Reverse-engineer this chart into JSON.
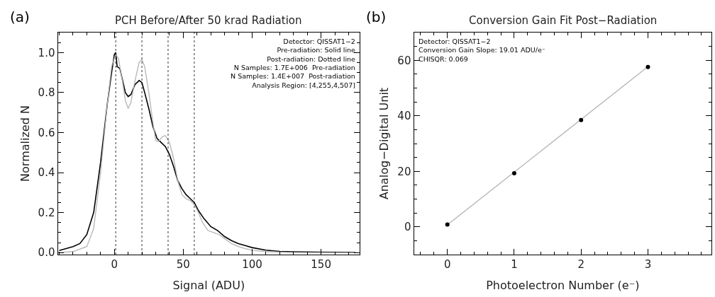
{
  "chart_data": [
    {
      "type": "line",
      "title": "PCH Before/After 50 krad Radiation",
      "xlabel": "Signal (ADU)",
      "ylabel": "Normalized N",
      "annotations": [
        "(a)",
        "Detector: QISSAT1−2",
        "Pre-radiation: Solid line",
        "Post-radiation: Dotted line",
        "N Samples: 1.7E+006  Pre-radiation",
        "N Samples: 1.4E+007  Post-radiation",
        "Analysis Region: [4,255,4,507]"
      ],
      "series": [
        {
          "color": "#000000",
          "x": [
            -40,
            -30,
            -25,
            -20,
            -15,
            -10,
            -5,
            -2,
            0,
            1,
            2,
            4,
            6,
            8,
            10,
            12,
            15,
            18,
            20,
            22,
            25,
            28,
            31,
            34,
            37,
            40,
            43,
            46,
            49,
            52,
            55,
            58,
            61,
            65,
            70,
            75,
            80,
            85,
            90,
            95,
            100,
            110,
            120,
            130,
            150,
            175
          ],
          "values": [
            0.01,
            0.03,
            0.045,
            0.09,
            0.2,
            0.45,
            0.75,
            0.9,
            0.99,
            1.0,
            0.93,
            0.92,
            0.86,
            0.8,
            0.78,
            0.79,
            0.84,
            0.86,
            0.85,
            0.8,
            0.72,
            0.63,
            0.57,
            0.55,
            0.53,
            0.49,
            0.43,
            0.36,
            0.32,
            0.29,
            0.27,
            0.25,
            0.21,
            0.17,
            0.13,
            0.11,
            0.08,
            0.06,
            0.045,
            0.035,
            0.025,
            0.012,
            0.006,
            0.004,
            0.002,
            0.001
          ]
        },
        {
          "color": "#b4b4b4",
          "x": [
            -40,
            -30,
            -20,
            -15,
            -10,
            -5,
            -2,
            1,
            3,
            6,
            8,
            10,
            12,
            15,
            18,
            20,
            22,
            25,
            28,
            30,
            32,
            35,
            37,
            40,
            43,
            46,
            49,
            52,
            55,
            58,
            61,
            64,
            68,
            72,
            76,
            80,
            85,
            90,
            95,
            100,
            110,
            125,
            150,
            175
          ],
          "values": [
            0.0,
            0.005,
            0.03,
            0.12,
            0.4,
            0.75,
            0.93,
            0.99,
            0.97,
            0.85,
            0.76,
            0.72,
            0.75,
            0.86,
            0.95,
            0.965,
            0.93,
            0.8,
            0.65,
            0.56,
            0.555,
            0.58,
            0.585,
            0.55,
            0.47,
            0.36,
            0.29,
            0.27,
            0.26,
            0.24,
            0.2,
            0.15,
            0.11,
            0.1,
            0.09,
            0.07,
            0.045,
            0.03,
            0.02,
            0.012,
            0.005,
            0.001,
            0.0,
            0.0
          ]
        }
      ],
      "ref_lines": [
        {
          "axis": "x",
          "value": 1,
          "line_style": "dotted",
          "color": "#000000"
        },
        {
          "axis": "x",
          "value": 20,
          "line_style": "dotted",
          "color": "#000000"
        },
        {
          "axis": "x",
          "value": 39,
          "line_style": "dotted",
          "color": "#000000"
        },
        {
          "axis": "x",
          "value": 58,
          "line_style": "dotted",
          "color": "#000000"
        }
      ],
      "xlim": [
        -41,
        178
      ],
      "xticks": [
        0,
        50,
        100,
        150
      ],
      "ylim": [
        -0.01,
        1.1
      ],
      "yticks": [
        {
          "value": 0,
          "label": "0.0"
        },
        {
          "value": 0.2,
          "label": "0.2"
        },
        {
          "value": 0.4,
          "label": "0.4"
        },
        {
          "value": 0.6,
          "label": "0.6"
        },
        {
          "value": 0.8,
          "label": "0.8"
        },
        {
          "value": 1,
          "label": "1.0"
        }
      ],
      "grid": false,
      "legend": false,
      "marker": "none",
      "line_style": "solid"
    },
    {
      "type": "scatter",
      "title": "Conversion Gain Fit Post−Radiation",
      "xlabel": "Photoelectron Number (e⁻)",
      "ylabel": "Analog−Digital Unit",
      "annotations": [
        "(b)",
        "Detector: QISSAT1−2",
        "Conversion Gain Slope: 19.01 ADU/e⁻",
        "CHISQR: 0.069"
      ],
      "series": [
        {
          "type": "line",
          "color": "#b4b4b4",
          "x": [
            0,
            3
          ],
          "values": [
            0.7,
            57.7
          ],
          "marker": "none"
        },
        {
          "type": "scatter",
          "color": "#000000",
          "x": [
            0,
            1,
            2,
            3
          ],
          "values": [
            0.8,
            19.3,
            38.5,
            57.6
          ],
          "marker": "circle"
        }
      ],
      "xlim": [
        -0.5,
        3.95
      ],
      "xticks": [
        0,
        1,
        2,
        3
      ],
      "ylim": [
        -10,
        70
      ],
      "yticks": [
        0,
        20,
        40,
        60
      ],
      "grid": false,
      "legend": false
    }
  ]
}
